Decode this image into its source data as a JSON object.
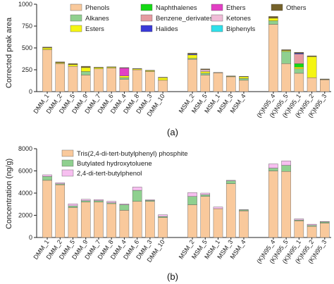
{
  "chart_data": [
    {
      "type": "bar",
      "stacked": true,
      "panel_label": "(a)",
      "ylabel": "Corrected peak area",
      "ylim": [
        0,
        1000
      ],
      "yticks": [
        "0",
        "250",
        "500",
        "750",
        "1000"
      ],
      "categories": [
        "DMM_1",
        "DMM_2",
        "DMM_5",
        "DMM_9",
        "DMM_7",
        "DMM_6",
        "DMM_4",
        "DMM_8",
        "DMM_3",
        "DMM_10",
        "MSM_2",
        "MSM_5",
        "MSM_1",
        "MSM_3",
        "MSM_4",
        "(K)N95_4",
        "(K)N95_5",
        "(K)N95_1",
        "(K)N95_2",
        "(K)N95_3"
      ],
      "groups": [
        [
          0,
          9
        ],
        [
          10,
          14
        ],
        [
          15,
          19
        ]
      ],
      "legend_position": "top",
      "series": [
        {
          "name": "Phenols",
          "color": "#f9c99c",
          "values": [
            480,
            320,
            290,
            190,
            260,
            270,
            140,
            250,
            230,
            130,
            370,
            190,
            215,
            170,
            130,
            770,
            320,
            210,
            160,
            135
          ]
        },
        {
          "name": "Alkanes",
          "color": "#8fd08f",
          "values": [
            0,
            0,
            0,
            40,
            0,
            0,
            20,
            0,
            0,
            0,
            10,
            20,
            0,
            0,
            20,
            40,
            140,
            50,
            0,
            0
          ]
        },
        {
          "name": "Esters",
          "color": "#f5f512",
          "values": [
            20,
            10,
            20,
            45,
            15,
            10,
            20,
            10,
            10,
            30,
            40,
            20,
            0,
            5,
            20,
            30,
            10,
            20,
            240,
            5
          ]
        },
        {
          "name": "Naphthalenes",
          "color": "#15d915",
          "values": [
            0,
            0,
            0,
            0,
            0,
            0,
            0,
            0,
            0,
            0,
            0,
            0,
            0,
            0,
            0,
            0,
            0,
            40,
            0,
            0
          ]
        },
        {
          "name": "Benzene_derivates",
          "color": "#e59aa0",
          "values": [
            0,
            0,
            0,
            0,
            0,
            0,
            0,
            0,
            0,
            0,
            0,
            0,
            0,
            0,
            0,
            0,
            0,
            110,
            0,
            0
          ]
        },
        {
          "name": "Halides",
          "color": "#3a3ad8",
          "values": [
            0,
            0,
            0,
            0,
            0,
            0,
            0,
            0,
            0,
            0,
            10,
            0,
            0,
            0,
            0,
            0,
            0,
            10,
            0,
            0
          ]
        },
        {
          "name": "Ethers",
          "color": "#e23fc4",
          "values": [
            0,
            0,
            0,
            0,
            0,
            0,
            90,
            0,
            0,
            0,
            0,
            0,
            0,
            0,
            0,
            0,
            0,
            0,
            0,
            0
          ]
        },
        {
          "name": "Ketones",
          "color": "#f0bcd8",
          "values": [
            0,
            0,
            0,
            0,
            0,
            0,
            0,
            0,
            0,
            0,
            0,
            20,
            0,
            0,
            0,
            0,
            0,
            0,
            0,
            0
          ]
        },
        {
          "name": "Biphenyls",
          "color": "#2fe0ea",
          "values": [
            0,
            0,
            0,
            0,
            0,
            0,
            0,
            0,
            0,
            0,
            0,
            0,
            0,
            0,
            0,
            0,
            0,
            0,
            0,
            0
          ]
        },
        {
          "name": "Others",
          "color": "#75622a",
          "values": [
            10,
            10,
            10,
            15,
            5,
            5,
            5,
            5,
            5,
            5,
            10,
            10,
            5,
            5,
            5,
            20,
            10,
            10,
            10,
            5
          ]
        }
      ]
    },
    {
      "type": "bar",
      "stacked": true,
      "panel_label": "(b)",
      "ylabel": "Concentration (ng/g)",
      "ylim": [
        0,
        8000
      ],
      "yticks": [
        "0",
        "2000",
        "4000",
        "6000",
        "8000"
      ],
      "categories": [
        "DMM_1",
        "DMM_2",
        "DMM_5",
        "DMM_9",
        "DMM_7",
        "DMM_8",
        "DMM_4",
        "DMM_6",
        "DMM_3",
        "DMM_10",
        "MSM_2",
        "MSM_5",
        "MSM_1",
        "MSM_3",
        "MSM_4",
        "(K)N95_4",
        "(K)N95_5",
        "(K)N95_1",
        "(K)N95_2",
        "(K)N95_3"
      ],
      "groups": [
        [
          0,
          9
        ],
        [
          10,
          14
        ],
        [
          15,
          19
        ]
      ],
      "legend_position": "top",
      "series": [
        {
          "name": "Tris(2,4-di-tert-butylphenyl) phosphite",
          "color": "#f9c99c",
          "values": [
            5150,
            4750,
            2700,
            3200,
            3200,
            3050,
            2450,
            3250,
            3250,
            1800,
            2950,
            3700,
            2600,
            4850,
            2400,
            6000,
            5950,
            1500,
            1000,
            1300
          ]
        },
        {
          "name": "Butylated hydroxytoluene",
          "color": "#8fd08f",
          "values": [
            350,
            80,
            150,
            120,
            120,
            80,
            500,
            1000,
            90,
            100,
            750,
            150,
            0,
            250,
            80,
            250,
            550,
            80,
            100,
            100
          ]
        },
        {
          "name": "2,4-di-tert-butylphenol",
          "color": "#f7bff0",
          "values": [
            150,
            100,
            180,
            120,
            100,
            130,
            70,
            300,
            60,
            150,
            350,
            150,
            150,
            50,
            30,
            380,
            400,
            100,
            100,
            50
          ]
        }
      ]
    }
  ]
}
